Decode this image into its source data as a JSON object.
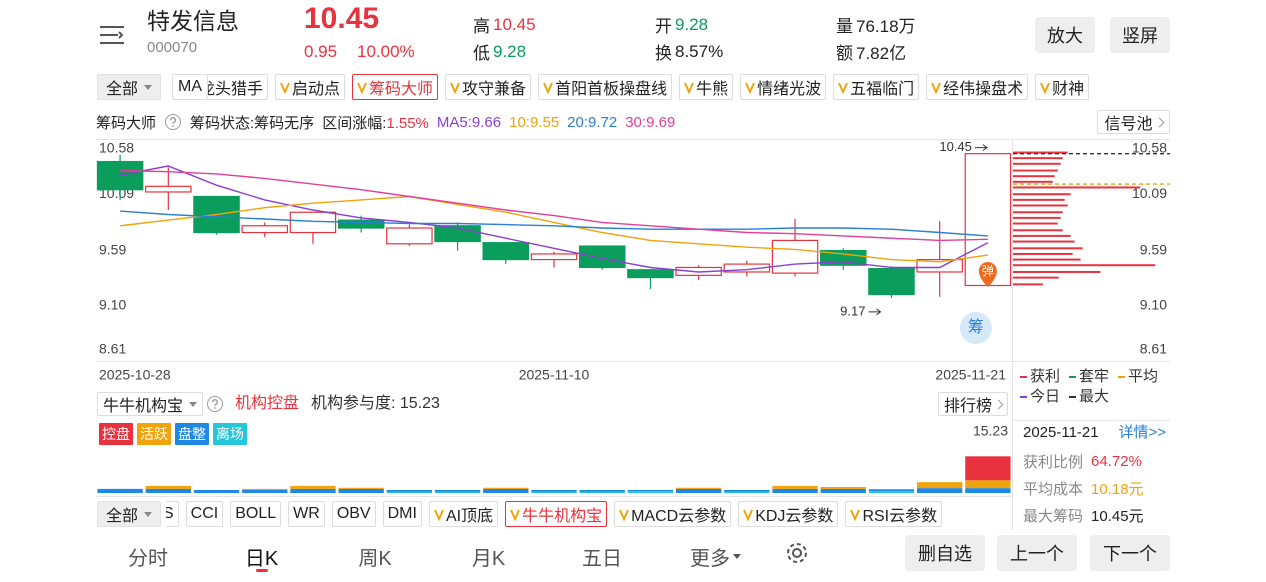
{
  "header": {
    "name": "特发信息",
    "code": "000070",
    "price": "10.45",
    "change": "0.95",
    "change_pct": "10.00%",
    "high_label": "高",
    "high": "10.45",
    "low_label": "低",
    "low": "9.28",
    "open_label": "开",
    "open": "9.28",
    "turnover_label": "换",
    "turnover": "8.57%",
    "volume_label": "量",
    "volume": "76.18万",
    "amount_label": "额",
    "amount": "7.82亿",
    "buttons": [
      "放大",
      "竖屏"
    ]
  },
  "indicator_tabs": {
    "all": "全部",
    "fixed": "MA",
    "items": [
      {
        "text": "龙头猎手"
      },
      {
        "text": "启动点",
        "v": true
      },
      {
        "text": "筹码大师",
        "v": true,
        "selected": true
      },
      {
        "text": "攻守兼备",
        "v": true
      },
      {
        "text": "首阳首板操盘线",
        "v": true
      },
      {
        "text": "牛熊",
        "v": true
      },
      {
        "text": "情绪光波",
        "v": true
      },
      {
        "text": "五福临门",
        "v": true
      },
      {
        "text": "经伟操盘术",
        "v": true
      },
      {
        "text": "财神",
        "v": true
      }
    ]
  },
  "chip_info": {
    "title": "筹码大师",
    "status": "筹码状态:筹码无序",
    "range_label": "区间涨幅:",
    "range_value": "1.55%",
    "ma_labels": [
      "MA5:9.66",
      "10:9.55",
      "20:9.72",
      "30:9.69"
    ],
    "signal_pool": "信号池"
  },
  "chart_data": [
    {
      "type": "candlestick",
      "categories": [
        "2025-10-28",
        null,
        null,
        null,
        null,
        null,
        null,
        null,
        null,
        "2025-11-10",
        null,
        null,
        null,
        null,
        null,
        null,
        null,
        null,
        "2025-11-21"
      ],
      "open": [
        10.38,
        10.11,
        10.07,
        9.75,
        9.75,
        9.86,
        9.65,
        9.81,
        9.66,
        9.51,
        9.63,
        9.42,
        9.37,
        9.4,
        9.39,
        9.59,
        9.43,
        9.4,
        9.28
      ],
      "high": [
        10.44,
        10.33,
        10.07,
        9.84,
        9.93,
        9.9,
        9.82,
        9.84,
        9.66,
        9.58,
        9.63,
        9.42,
        9.46,
        9.5,
        9.87,
        9.61,
        9.45,
        9.85,
        10.45
      ],
      "low": [
        10.04,
        9.95,
        9.73,
        9.71,
        9.65,
        9.75,
        9.63,
        9.59,
        9.47,
        9.44,
        9.42,
        9.25,
        9.33,
        9.36,
        9.36,
        9.42,
        9.17,
        9.18,
        9.28
      ],
      "close": [
        10.13,
        10.16,
        9.75,
        9.81,
        9.93,
        9.79,
        9.79,
        9.67,
        9.51,
        9.56,
        9.44,
        9.35,
        9.44,
        9.47,
        9.68,
        9.46,
        9.2,
        9.51,
        10.45
      ],
      "up_color": "#e8333f",
      "down_color": "#0a9d5c",
      "series": [
        {
          "color": "#8a3fd1",
          "values": [
            10.26,
            10.34,
            10.17,
            10.04,
            9.95,
            9.88,
            9.84,
            9.79,
            9.7,
            9.61,
            9.52,
            9.44,
            9.4,
            9.42,
            9.47,
            9.49,
            9.44,
            9.44,
            9.66
          ]
        },
        {
          "color": "#f0a30a",
          "values": [
            9.81,
            9.86,
            9.91,
            9.97,
            10.01,
            10.04,
            10.07,
            10.0,
            9.93,
            9.84,
            9.75,
            9.68,
            9.65,
            9.62,
            9.6,
            9.56,
            9.51,
            9.49,
            9.55
          ]
        },
        {
          "color": "#2a7fd4",
          "values": [
            9.94,
            9.91,
            9.89,
            9.87,
            9.85,
            9.84,
            9.83,
            9.83,
            9.82,
            9.81,
            9.79,
            9.78,
            9.78,
            9.78,
            9.79,
            9.79,
            9.78,
            9.75,
            9.72
          ]
        },
        {
          "color": "#e0409a",
          "values": [
            10.3,
            10.29,
            10.27,
            10.23,
            10.18,
            10.13,
            10.07,
            10.01,
            9.95,
            9.9,
            9.84,
            9.81,
            9.78,
            9.75,
            9.74,
            9.72,
            9.7,
            9.68,
            9.69
          ]
        }
      ],
      "ylim": [
        8.61,
        10.58
      ],
      "yticks": [
        10.58,
        10.09,
        9.59,
        {
          "value": 9.1,
          "label": "9.10"
        },
        8.61
      ],
      "annotations": {
        "max": "10.45",
        "max_value": 10.45,
        "min": "9.17",
        "min_value": 9.17
      },
      "markers": [
        "弹",
        "筹"
      ],
      "chips": {
        "prices": [
          10.46,
          10.41,
          10.36,
          10.3,
          10.25,
          10.2,
          10.15,
          10.09,
          10.04,
          9.99,
          9.93,
          9.88,
          9.83,
          9.77,
          9.72,
          9.67,
          9.61,
          9.56,
          9.51,
          9.46,
          9.4,
          9.35,
          9.29
        ],
        "amounts": [
          55,
          50,
          48,
          45,
          42,
          40,
          128,
          58,
          52,
          55,
          50,
          48,
          45,
          50,
          58,
          62,
          70,
          60,
          68,
          143,
          88,
          46,
          30
        ],
        "xlim": [
          0,
          158
        ],
        "color": "#e8333f",
        "avg_cost": 10.18,
        "avg_color": "#f0a30a",
        "max_chip": 10.45,
        "max_color": "#333"
      },
      "chip_legend": [
        {
          "name": "获利",
          "color": "#e8333f"
        },
        {
          "name": "套牢",
          "color": "#0a9d5c"
        },
        {
          "name": "平均",
          "color": "#f0a30a"
        },
        {
          "name": "今日",
          "color": "#8a3fd1"
        },
        {
          "name": "最大",
          "color": "#333"
        }
      ]
    },
    {
      "type": "stacked_bar",
      "series": [
        {
          "name": "控盘",
          "color": "#e8333f",
          "values": [
            0,
            0,
            0,
            0,
            0,
            0,
            0,
            0,
            0,
            0,
            0,
            0,
            0,
            0,
            0,
            0,
            0,
            0,
            6.4
          ]
        },
        {
          "name": "活跃",
          "color": "#f0a30a",
          "values": [
            0,
            0.8,
            0,
            0.3,
            0.8,
            0.3,
            0,
            0,
            0.3,
            0,
            0,
            0,
            0.3,
            0,
            0.8,
            0.5,
            0,
            1.6,
            2.1
          ]
        },
        {
          "name": "盘整",
          "color": "#1e88e5",
          "values": [
            1.1,
            1.1,
            0.8,
            0.8,
            1.1,
            1.1,
            0.5,
            0.5,
            1.1,
            0.5,
            0.5,
            0.3,
            1.1,
            0.5,
            1.1,
            1.1,
            0.5,
            1.3,
            1.3
          ]
        },
        {
          "name": "离场",
          "color": "#26c6da",
          "values": [
            0,
            0,
            0,
            0,
            0,
            0,
            0.3,
            0.3,
            0,
            0.3,
            0.3,
            0.5,
            0,
            0.3,
            0,
            0,
            0.5,
            0,
            0
          ]
        }
      ],
      "ylim": [
        0,
        15.23
      ],
      "yticks": [
        15.23
      ]
    }
  ],
  "chip_summary": {
    "date": "2025-11-21",
    "details": "详情>>",
    "rows": [
      {
        "label": "获利比例",
        "value": "64.72%",
        "color": "#e8333f"
      },
      {
        "label": "平均成本",
        "value": "10.18元",
        "color": "#f0a30a"
      },
      {
        "label": "最大筹码",
        "value": "10.45元",
        "color": "#222"
      }
    ]
  },
  "institution_panel": {
    "selector": "牛牛机构宝",
    "title": "机构控盘",
    "participation": "机构参与度: 15.23",
    "ranking": "排行榜"
  },
  "indicator_tabs_2": {
    "all": "全部",
    "items": [
      {
        "text": "S"
      },
      {
        "text": "CCI"
      },
      {
        "text": "BOLL"
      },
      {
        "text": "WR"
      },
      {
        "text": "OBV"
      },
      {
        "text": "DMI"
      },
      {
        "text": "AI顶底",
        "v": true
      },
      {
        "text": "牛牛机构宝",
        "v": true,
        "selected": true
      },
      {
        "text": "MACD云参数",
        "v": true
      },
      {
        "text": "KDJ云参数",
        "v": true
      },
      {
        "text": "RSI云参数",
        "v": true
      }
    ]
  },
  "nav": {
    "periods": [
      "分时",
      "日K",
      "周K",
      "月K",
      "五日",
      "更多"
    ],
    "selected": 1,
    "buttons": [
      "删自选",
      "上一个",
      "下一个"
    ]
  }
}
